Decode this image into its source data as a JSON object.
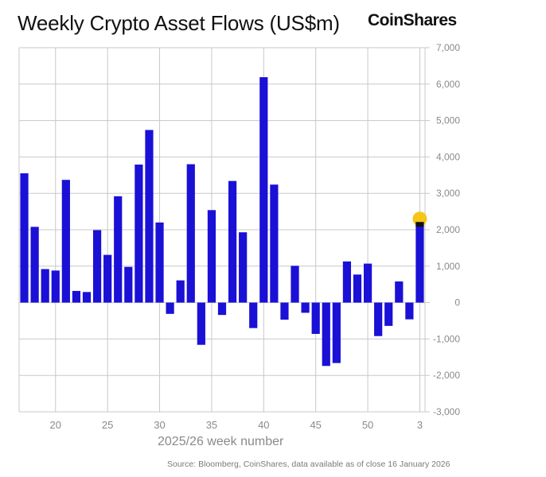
{
  "header": {
    "title": "Weekly Crypto Asset Flows (US$m)",
    "brand": "CoinShares"
  },
  "footer": {
    "source": "Source: Bloomberg, CoinShares, data available as of close 16 January 2026"
  },
  "colors": {
    "bar": "#1a10d6",
    "grid": "#c8c8c8",
    "highlight": "#f5c518",
    "latest_cap": "#111111",
    "axis_text": "#8a8a8a"
  },
  "chart_data": {
    "type": "bar",
    "title": "Weekly Crypto Asset Flows (US$m)",
    "xlabel": "2025/26 week number",
    "ylabel": "",
    "ylim": [
      -3000,
      7000
    ],
    "yticks": [
      7000,
      6000,
      5000,
      4000,
      3000,
      2000,
      1000,
      0,
      -1000,
      -2000,
      -3000
    ],
    "ytick_labels": [
      "7,000",
      "6,000",
      "5,000",
      "4,000",
      "3,000",
      "2,000",
      "1,000",
      "0",
      "-1,000",
      "-2,000",
      "-3,000"
    ],
    "x_tick_labels": [
      "20",
      "25",
      "30",
      "35",
      "40",
      "45",
      "50",
      "3"
    ],
    "x_tick_weeks": [
      20,
      25,
      30,
      35,
      40,
      45,
      50,
      55
    ],
    "x_start_week": 17,
    "grid": true,
    "y_axis_side": "right",
    "values": [
      3550,
      2080,
      920,
      880,
      3370,
      320,
      290,
      1990,
      1310,
      2920,
      980,
      3790,
      4740,
      2200,
      -310,
      610,
      3800,
      -1160,
      2540,
      -340,
      3340,
      1930,
      -700,
      6190,
      3240,
      -470,
      1010,
      -280,
      -860,
      -1740,
      -1660,
      1130,
      770,
      1070,
      -920,
      -640,
      580,
      -460,
      2170
    ],
    "highlight_last": true
  }
}
